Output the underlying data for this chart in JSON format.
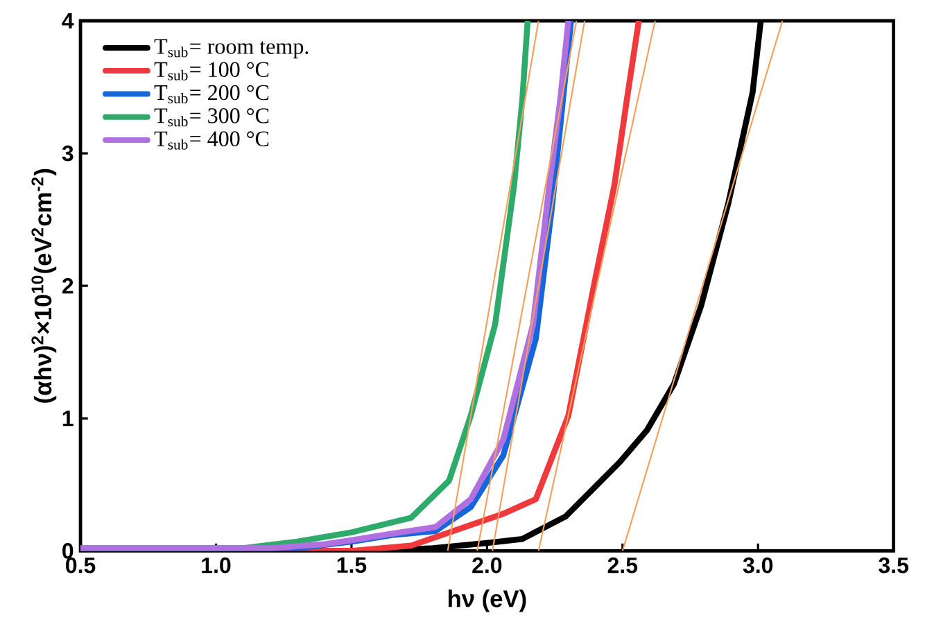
{
  "chart_data": {
    "type": "line",
    "xlabel": "hν (eV)",
    "ylabel": "(αhν)$^{2}$×10$^{10}$(eV$^{2}$cm$^{-2}$)",
    "xlim": [
      0.5,
      3.5
    ],
    "ylim": [
      0,
      4
    ],
    "xticks": [
      0.5,
      {
        "value": 1,
        "label": "1.0"
      },
      1.5,
      {
        "value": 2,
        "label": "2.0"
      },
      2.5,
      {
        "value": 3,
        "label": "3.0"
      },
      3.5
    ],
    "yticks": [
      0,
      1,
      2,
      3,
      4
    ],
    "grid": false,
    "legend": "top left",
    "marker": "none",
    "line_style": "solid",
    "series": [
      {
        "name": "T$_{sub}$= room temp.",
        "color": "#000000",
        "x": [
          0.5,
          1.6,
          1.8,
          2.0,
          2.13,
          2.29,
          2.49,
          2.59,
          2.69,
          2.79,
          2.89,
          2.98,
          3.01
        ],
        "values": [
          0.0,
          0.0,
          0.02,
          0.06,
          0.09,
          0.26,
          0.67,
          0.91,
          1.26,
          1.85,
          2.62,
          3.46,
          4.0
        ]
      },
      {
        "name": "T$_{sub}$= 100 °C",
        "color": "#f0393c",
        "x": [
          0.5,
          1.5,
          1.72,
          1.89,
          2.06,
          2.18,
          2.3,
          2.4,
          2.47,
          2.52,
          2.56
        ],
        "values": [
          0.0,
          0.0,
          0.04,
          0.16,
          0.28,
          0.39,
          1.02,
          2.06,
          2.76,
          3.46,
          4.0
        ]
      },
      {
        "name": "T$_{sub}$= 200 °C",
        "color": "#1565db",
        "x": [
          0.5,
          1.3,
          1.5,
          1.65,
          1.81,
          1.94,
          2.06,
          2.18,
          2.24,
          2.28,
          2.31
        ],
        "values": [
          0.01,
          0.02,
          0.07,
          0.12,
          0.15,
          0.33,
          0.72,
          1.6,
          2.6,
          3.4,
          4.0
        ]
      },
      {
        "name": "T$_{sub}$= 300 °C",
        "color": "#2eaa6a",
        "x": [
          0.5,
          1.1,
          1.3,
          1.5,
          1.62,
          1.72,
          1.86,
          1.94,
          2.03,
          2.1,
          2.13,
          2.15
        ],
        "values": [
          0.02,
          0.02,
          0.07,
          0.14,
          0.2,
          0.25,
          0.53,
          1.02,
          1.71,
          2.76,
          3.4,
          4.0
        ]
      },
      {
        "name": "T$_{sub}$= 400 °C",
        "color": "#b070e0",
        "x": [
          0.5,
          1.2,
          1.4,
          1.5,
          1.65,
          1.81,
          1.94,
          2.06,
          2.17,
          2.23,
          2.27,
          2.3
        ],
        "values": [
          0.02,
          0.02,
          0.05,
          0.08,
          0.13,
          0.18,
          0.39,
          0.84,
          1.71,
          2.76,
          3.4,
          4.0
        ]
      },
      {
        "color": "#f5a05a",
        "x": [
          1.855,
          2.19
        ],
        "values": [
          0,
          4
        ]
      },
      {
        "color": "#f5a05a",
        "x": [
          1.964,
          2.33
        ],
        "values": [
          0,
          4
        ]
      },
      {
        "color": "#f5a05a",
        "x": [
          2.02,
          2.36
        ],
        "values": [
          0,
          4
        ]
      },
      {
        "color": "#f5a05a",
        "x": [
          2.19,
          2.62
        ],
        "values": [
          0,
          4
        ]
      },
      {
        "color": "#f5a05a",
        "x": [
          2.5,
          3.09
        ],
        "values": [
          0,
          4
        ]
      }
    ]
  }
}
